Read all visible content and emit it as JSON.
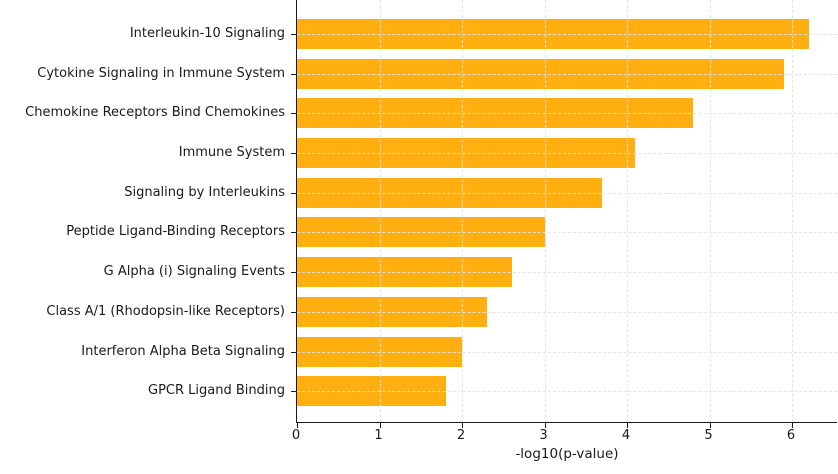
{
  "chart_data": {
    "type": "bar",
    "orientation": "horizontal",
    "title": "",
    "categories": [
      "Interleukin-10 Signaling",
      "Cytokine Signaling in Immune System",
      "Chemokine Receptors Bind Chemokines",
      "Immune System",
      "Signaling by Interleukins",
      "Peptide Ligand-Binding Receptors",
      "G Alpha (i) Signaling Events",
      "Class A/1 (Rhodopsin-like Receptors)",
      "Interferon Alpha Beta Signaling",
      "GPCR Ligand Binding"
    ],
    "values": [
      6.2,
      5.9,
      4.8,
      4.1,
      3.7,
      3.0,
      2.6,
      2.3,
      2.0,
      1.8
    ],
    "xlabel": "-log10(p-value)",
    "ylabel": "",
    "xlim": [
      0,
      6.55
    ],
    "xticks": [
      0,
      1,
      2,
      3,
      4,
      5,
      6
    ],
    "grid": "dashed both axes, drawn above bars",
    "legend": "none",
    "bar_color": "#FFAF10",
    "spine_color": "#1a1a1a",
    "grid_color": "#e1e1e1",
    "text_color": "#1a1a1a",
    "background": "#ffffff"
  }
}
